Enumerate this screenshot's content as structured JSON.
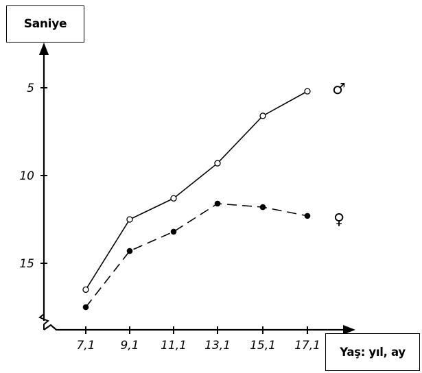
{
  "chart_data": {
    "type": "line",
    "ylabel": "Saniye",
    "xlabel": "Yaş: yıl, ay",
    "x": [
      7.1,
      9.1,
      11.1,
      13.1,
      15.1,
      17.1
    ],
    "x_tick_labels": [
      "7,1",
      "9,1",
      "11,1",
      "13,1",
      "15,1",
      "17,1"
    ],
    "y_tick_values": [
      5,
      10,
      15
    ],
    "y_tick_labels": [
      "5",
      "10",
      "15"
    ],
    "y_axis_inverted": true,
    "ylim": [
      17.8,
      3.0
    ],
    "grid": false,
    "series": [
      {
        "name": "♂",
        "line_style": "solid",
        "marker": "open-circle",
        "values": [
          16.5,
          12.5,
          11.3,
          9.3,
          6.6,
          5.2
        ]
      },
      {
        "name": "♀",
        "line_style": "dashed",
        "marker": "filled-circle",
        "values": [
          17.5,
          14.3,
          13.2,
          11.6,
          11.8,
          12.3
        ]
      }
    ]
  }
}
